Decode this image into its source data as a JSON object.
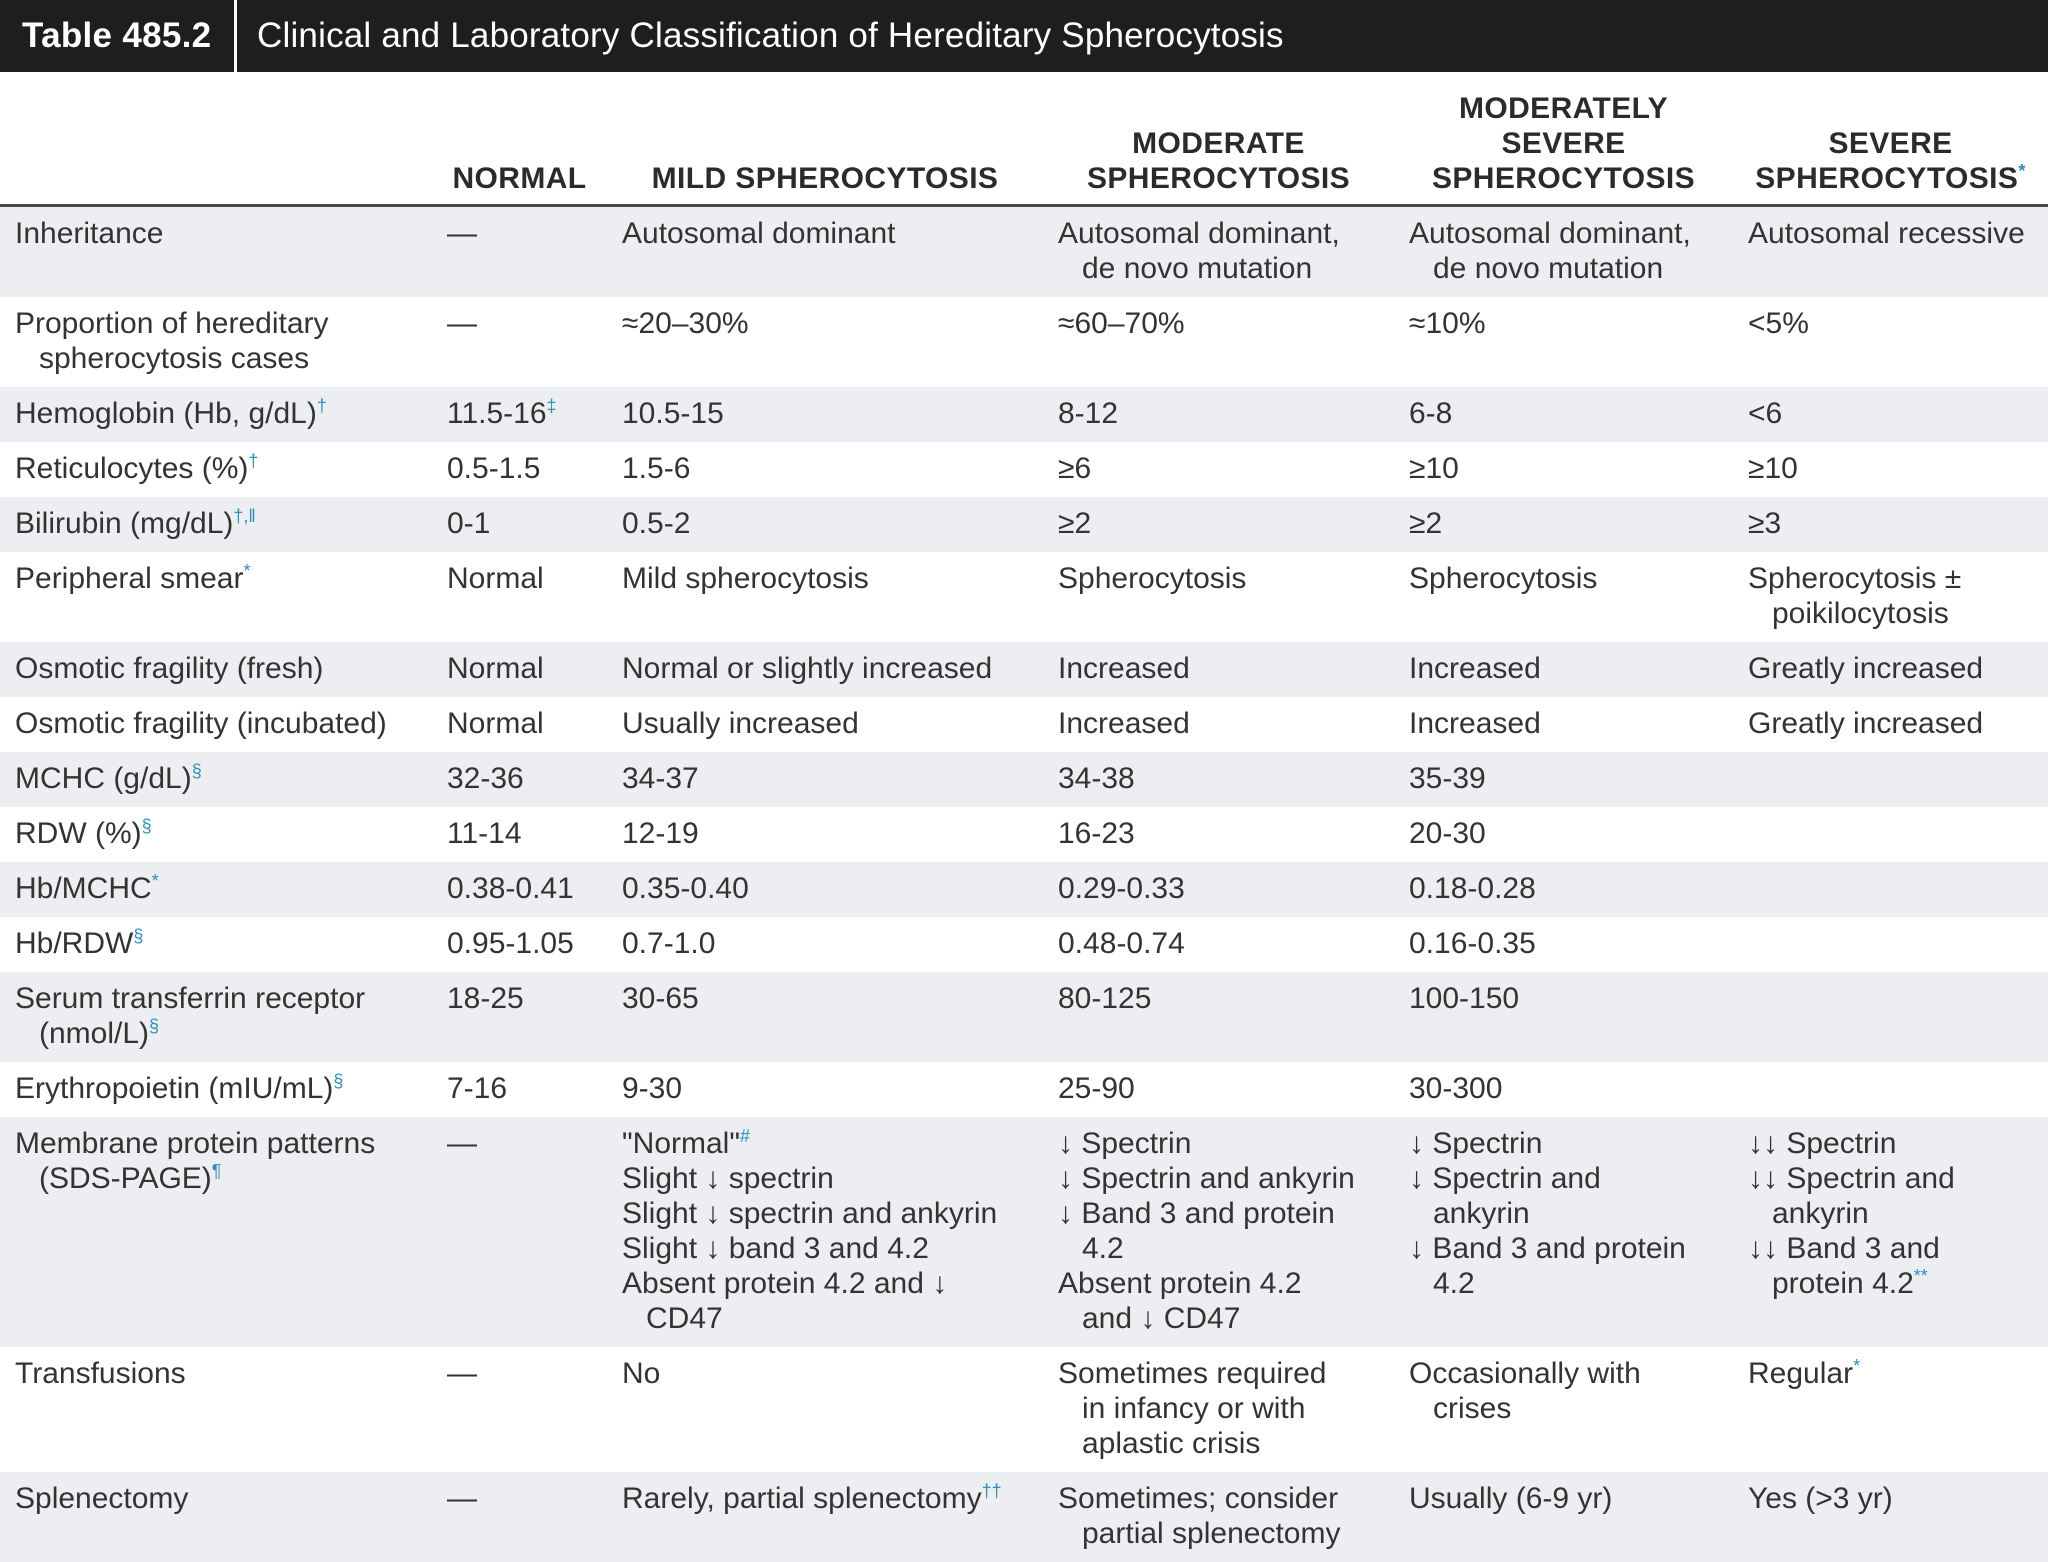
{
  "table_label": "Table 485.2",
  "table_title": "Clinical and Laboratory Classification of Hereditary Spherocytosis",
  "columns": [
    {
      "lines": [
        ""
      ]
    },
    {
      "lines": [
        "NORMAL"
      ]
    },
    {
      "lines": [
        "MILD SPHEROCYTOSIS"
      ]
    },
    {
      "lines": [
        "MODERATE",
        "SPHEROCYTOSIS"
      ]
    },
    {
      "lines": [
        "MODERATELY",
        "SEVERE",
        "SPHEROCYTOSIS"
      ]
    },
    {
      "lines": [
        "SEVERE",
        "SPHEROCYTOSIS"
      ],
      "sup": "*"
    }
  ],
  "rows": [
    {
      "cells": [
        {
          "lines": [
            "Inheritance"
          ]
        },
        {
          "lines": [
            "—"
          ]
        },
        {
          "lines": [
            "Autosomal dominant"
          ]
        },
        {
          "lines": [
            "Autosomal dominant,",
            "de novo mutation"
          ]
        },
        {
          "lines": [
            "Autosomal dominant,",
            "de novo mutation"
          ]
        },
        {
          "lines": [
            "Autosomal recessive"
          ]
        }
      ]
    },
    {
      "cells": [
        {
          "lines": [
            "Proportion of hereditary",
            "spherocytosis cases"
          ]
        },
        {
          "lines": [
            "—"
          ]
        },
        {
          "lines": [
            "≈20–30%"
          ]
        },
        {
          "lines": [
            "≈60–70%"
          ]
        },
        {
          "lines": [
            "≈10%"
          ]
        },
        {
          "lines": [
            "<5%"
          ]
        }
      ]
    },
    {
      "cells": [
        {
          "lines": [
            "Hemoglobin (Hb, g/dL)"
          ],
          "sup": "†"
        },
        {
          "lines": [
            "11.5-16"
          ],
          "sup": "‡"
        },
        {
          "lines": [
            "10.5-15"
          ]
        },
        {
          "lines": [
            "8-12"
          ]
        },
        {
          "lines": [
            "6-8"
          ]
        },
        {
          "lines": [
            "<6"
          ]
        }
      ]
    },
    {
      "cells": [
        {
          "lines": [
            "Reticulocytes (%)"
          ],
          "sup": "†"
        },
        {
          "lines": [
            "0.5-1.5"
          ]
        },
        {
          "lines": [
            "1.5-6"
          ]
        },
        {
          "lines": [
            "≥6"
          ]
        },
        {
          "lines": [
            "≥10"
          ]
        },
        {
          "lines": [
            "≥10"
          ]
        }
      ]
    },
    {
      "cells": [
        {
          "lines": [
            "Bilirubin (mg/dL)"
          ],
          "sup": "†,‖"
        },
        {
          "lines": [
            "0-1"
          ]
        },
        {
          "lines": [
            "0.5-2"
          ]
        },
        {
          "lines": [
            "≥2"
          ]
        },
        {
          "lines": [
            "≥2"
          ]
        },
        {
          "lines": [
            "≥3"
          ]
        }
      ]
    },
    {
      "cells": [
        {
          "lines": [
            "Peripheral smear"
          ],
          "sup": "*"
        },
        {
          "lines": [
            "Normal"
          ]
        },
        {
          "lines": [
            "Mild spherocytosis"
          ]
        },
        {
          "lines": [
            "Spherocytosis"
          ]
        },
        {
          "lines": [
            "Spherocytosis"
          ]
        },
        {
          "lines": [
            "Spherocytosis ±",
            "poikilocytosis"
          ]
        }
      ]
    },
    {
      "cells": [
        {
          "lines": [
            "Osmotic fragility (fresh)"
          ]
        },
        {
          "lines": [
            "Normal"
          ]
        },
        {
          "lines": [
            "Normal or slightly increased"
          ]
        },
        {
          "lines": [
            "Increased"
          ]
        },
        {
          "lines": [
            "Increased"
          ]
        },
        {
          "lines": [
            "Greatly increased"
          ]
        }
      ]
    },
    {
      "cells": [
        {
          "lines": [
            "Osmotic fragility (incubated)"
          ]
        },
        {
          "lines": [
            "Normal"
          ]
        },
        {
          "lines": [
            "Usually increased"
          ]
        },
        {
          "lines": [
            "Increased"
          ]
        },
        {
          "lines": [
            "Increased"
          ]
        },
        {
          "lines": [
            "Greatly increased"
          ]
        }
      ]
    },
    {
      "cells": [
        {
          "lines": [
            "MCHC (g/dL)"
          ],
          "sup": "§"
        },
        {
          "lines": [
            "32-36"
          ]
        },
        {
          "lines": [
            "34-37"
          ]
        },
        {
          "lines": [
            "34-38"
          ]
        },
        {
          "lines": [
            "35-39"
          ]
        },
        {
          "lines": [
            ""
          ]
        }
      ]
    },
    {
      "cells": [
        {
          "lines": [
            "RDW (%)"
          ],
          "sup": "§"
        },
        {
          "lines": [
            "11-14"
          ]
        },
        {
          "lines": [
            "12-19"
          ]
        },
        {
          "lines": [
            "16-23"
          ]
        },
        {
          "lines": [
            "20-30"
          ]
        },
        {
          "lines": [
            ""
          ]
        }
      ]
    },
    {
      "cells": [
        {
          "lines": [
            "Hb/MCHC"
          ],
          "sup": "*"
        },
        {
          "lines": [
            "0.38-0.41"
          ]
        },
        {
          "lines": [
            "0.35-0.40"
          ]
        },
        {
          "lines": [
            "0.29-0.33"
          ]
        },
        {
          "lines": [
            "0.18-0.28"
          ]
        },
        {
          "lines": [
            ""
          ]
        }
      ]
    },
    {
      "cells": [
        {
          "lines": [
            "Hb/RDW"
          ],
          "sup": "§"
        },
        {
          "lines": [
            "0.95-1.05"
          ]
        },
        {
          "lines": [
            "0.7-1.0"
          ]
        },
        {
          "lines": [
            "0.48-0.74"
          ]
        },
        {
          "lines": [
            "0.16-0.35"
          ]
        },
        {
          "lines": [
            ""
          ]
        }
      ]
    },
    {
      "cells": [
        {
          "lines": [
            "Serum transferrin receptor",
            "(nmol/L)"
          ],
          "sup": "§"
        },
        {
          "lines": [
            "18-25"
          ]
        },
        {
          "lines": [
            "30-65"
          ]
        },
        {
          "lines": [
            "80-125"
          ]
        },
        {
          "lines": [
            "100-150"
          ]
        },
        {
          "lines": [
            ""
          ]
        }
      ]
    },
    {
      "cells": [
        {
          "lines": [
            "Erythropoietin (mIU/mL)"
          ],
          "sup": "§"
        },
        {
          "lines": [
            "7-16"
          ]
        },
        {
          "lines": [
            "9-30"
          ]
        },
        {
          "lines": [
            "25-90"
          ]
        },
        {
          "lines": [
            "30-300"
          ]
        },
        {
          "lines": [
            ""
          ]
        }
      ]
    },
    {
      "cells": [
        {
          "lines": [
            "Membrane protein patterns",
            "(SDS-PAGE)"
          ],
          "sup": "¶"
        },
        {
          "lines": [
            "—"
          ]
        },
        {
          "lines": [
            "\"Normal\"",
            "Slight ↓ spectrin",
            "Slight ↓ spectrin and ankyrin",
            "Slight ↓ band 3 and 4.2",
            "Absent protein 4.2 and ↓",
            "CD47"
          ],
          "sup0": "#"
        },
        {
          "lines": [
            "↓ Spectrin",
            "↓ Spectrin and ankyrin",
            "↓ Band 3 and protein",
            "4.2",
            "Absent protein 4.2",
            "and ↓ CD47"
          ]
        },
        {
          "lines": [
            "↓ Spectrin",
            "↓ Spectrin and",
            "ankyrin",
            "↓ Band 3 and protein",
            "4.2"
          ]
        },
        {
          "lines": [
            "↓↓ Spectrin",
            "↓↓ Spectrin and",
            "ankyrin",
            "↓↓ Band 3 and",
            "protein 4.2"
          ],
          "sup": "**"
        }
      ]
    },
    {
      "cells": [
        {
          "lines": [
            "Transfusions"
          ]
        },
        {
          "lines": [
            "—"
          ]
        },
        {
          "lines": [
            "No"
          ]
        },
        {
          "lines": [
            "Sometimes required",
            "in infancy or with",
            "aplastic crisis"
          ]
        },
        {
          "lines": [
            "Occasionally with",
            "crises"
          ]
        },
        {
          "lines": [
            "Regular"
          ],
          "sup": "*"
        }
      ]
    },
    {
      "cells": [
        {
          "lines": [
            "Splenectomy"
          ]
        },
        {
          "lines": [
            "—"
          ]
        },
        {
          "lines": [
            "Rarely, partial splenectomy"
          ],
          "sup": "††"
        },
        {
          "lines": [
            "Sometimes; consider",
            "partial splenectomy"
          ]
        },
        {
          "lines": [
            "Usually (6-9 yr)"
          ]
        },
        {
          "lines": [
            "Yes (>3 yr)"
          ]
        }
      ]
    }
  ]
}
